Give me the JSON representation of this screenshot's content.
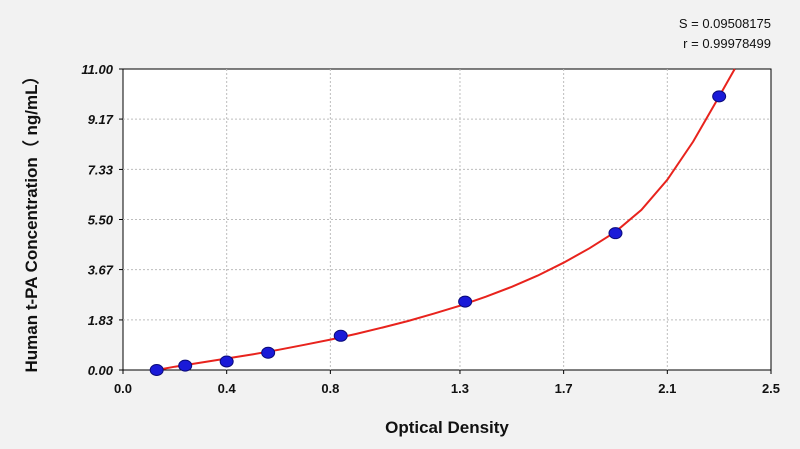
{
  "stats": {
    "s_text": "S = 0.09508175",
    "r_text": "r = 0.99978499"
  },
  "colors": {
    "background": "#f2f2f2",
    "plot_area": "#ffffff",
    "curve": "#e8231d",
    "point_fill": "#1a1ad8",
    "point_edge": "#0a0a7a",
    "grid": "#bdbdbd"
  },
  "chart_data": {
    "type": "scatter",
    "title": "",
    "xlabel": "Optical Density",
    "ylabel": "Human t-PA Concentration（ ng/mL）",
    "xlim": [
      0.0,
      2.5
    ],
    "ylim": [
      0.0,
      11.0
    ],
    "x_ticks": [
      "0.0",
      "0.4",
      "0.8",
      "1.3",
      "1.7",
      "2.1",
      "2.5"
    ],
    "x_tick_values": [
      0.0,
      0.4,
      0.8,
      1.3,
      1.7,
      2.1,
      2.5
    ],
    "y_ticks": [
      "0.00",
      "1.83",
      "3.67",
      "5.50",
      "7.33",
      "9.17",
      "11.00"
    ],
    "y_tick_values": [
      0.0,
      1.83,
      3.67,
      5.5,
      7.33,
      9.17,
      11.0
    ],
    "grid": true,
    "points": [
      {
        "x": 0.13,
        "y": 0.0
      },
      {
        "x": 0.24,
        "y": 0.16
      },
      {
        "x": 0.4,
        "y": 0.31
      },
      {
        "x": 0.56,
        "y": 0.63
      },
      {
        "x": 0.84,
        "y": 1.25
      },
      {
        "x": 1.32,
        "y": 2.5
      },
      {
        "x": 1.9,
        "y": 5.0
      },
      {
        "x": 2.3,
        "y": 10.0
      }
    ],
    "curve": {
      "x": [
        0.13,
        0.2,
        0.3,
        0.4,
        0.5,
        0.6,
        0.7,
        0.8,
        0.9,
        1.0,
        1.1,
        1.2,
        1.3,
        1.4,
        1.5,
        1.6,
        1.7,
        1.8,
        1.9,
        2.0,
        2.1,
        2.2,
        2.3,
        2.36
      ],
      "y": [
        0.0,
        0.12,
        0.27,
        0.42,
        0.57,
        0.74,
        0.92,
        1.11,
        1.32,
        1.55,
        1.79,
        2.06,
        2.35,
        2.68,
        3.04,
        3.45,
        3.92,
        4.45,
        5.05,
        5.85,
        6.95,
        8.35,
        10.0,
        11.0
      ]
    }
  }
}
